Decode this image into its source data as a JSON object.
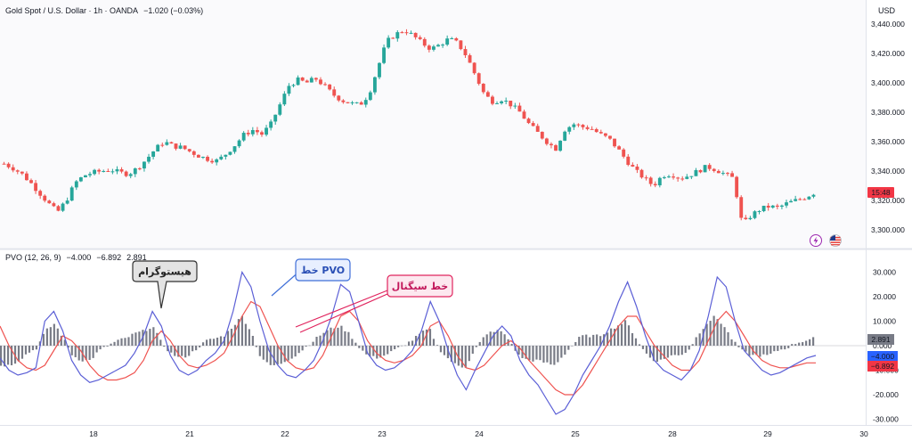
{
  "header": {
    "symbol": "Gold Spot / U.S. Dollar · 1h · OANDA",
    "change": "−1.020 (−0.03%)",
    "currency": "USD"
  },
  "indicator": {
    "label": "PVO (12, 26, 9)",
    "pvo_value": "−4.000",
    "signal_value": "−6.892",
    "hist_value": "2.891"
  },
  "badges": {
    "time": "15:48",
    "hist": "2.891",
    "pvo": "−4.000",
    "signal": "−6.892"
  },
  "annotations": {
    "histogram": "هیستوگرام",
    "pvo_line": "خط PVO",
    "signal_line": "خط سیگنال"
  },
  "colors": {
    "up": "#26a69a",
    "down": "#ef5350",
    "pvo": "#5b5fd6",
    "signal": "#ef5350",
    "hist": "#787b86"
  },
  "chart_data": [
    {
      "type": "candlestick",
      "title": "Gold Spot / U.S. Dollar · 1h · OANDA",
      "ylim": [
        3290,
        3445
      ],
      "y_ticks": [
        "3,440.000",
        "3,420.000",
        "3,400.000",
        "3,380.000",
        "3,360.000",
        "3,340.000",
        "3,320.000",
        "3,300.000"
      ],
      "x_ticks": [
        "18",
        "21",
        "22",
        "23",
        "24",
        "25",
        "28",
        "29",
        "30"
      ],
      "close_path": [
        3345,
        3342,
        3338,
        3332,
        3325,
        3318,
        3312,
        3320,
        3332,
        3337,
        3339,
        3340,
        3341,
        3339,
        3338,
        3342,
        3348,
        3355,
        3360,
        3357,
        3356,
        3353,
        3350,
        3348,
        3347,
        3352,
        3358,
        3365,
        3368,
        3365,
        3372,
        3385,
        3398,
        3402,
        3400,
        3403,
        3398,
        3392,
        3388,
        3386,
        3385,
        3392,
        3410,
        3428,
        3433,
        3436,
        3432,
        3427,
        3423,
        3426,
        3430,
        3427,
        3418,
        3405,
        3392,
        3387,
        3389,
        3385,
        3380,
        3372,
        3366,
        3360,
        3355,
        3368,
        3372,
        3370,
        3369,
        3365,
        3362,
        3355,
        3347,
        3340,
        3335,
        3330,
        3337,
        3338,
        3335,
        3337,
        3340,
        3343,
        3341,
        3338,
        3335,
        3303,
        3310,
        3314,
        3316,
        3315,
        3318,
        3320,
        3322,
        3325
      ]
    },
    {
      "type": "line",
      "title": "PVO (12, 26, 9)",
      "ylim": [
        -33,
        34
      ],
      "y_ticks": [
        "30.000",
        "20.000",
        "10.000",
        "0.000",
        "-10.000",
        "-20.000",
        "-30.000"
      ],
      "series": [
        {
          "name": "PVO",
          "values": [
            -5,
            -10,
            -12,
            -11,
            -9,
            10,
            14,
            6,
            -6,
            -12,
            -15,
            -14,
            -12,
            -10,
            -8,
            -3,
            4,
            14,
            8,
            -4,
            -10,
            -12,
            -10,
            -6,
            -3,
            2,
            14,
            30,
            24,
            10,
            -2,
            -8,
            -12,
            -13,
            -10,
            -6,
            2,
            12,
            25,
            22,
            10,
            -3,
            -8,
            -10,
            -9,
            -6,
            -2,
            6,
            18,
            10,
            -2,
            -12,
            -18,
            -10,
            -3,
            4,
            8,
            4,
            -6,
            -12,
            -16,
            -22,
            -28,
            -26,
            -20,
            -12,
            -6,
            0,
            8,
            18,
            26,
            16,
            4,
            -6,
            -10,
            -12,
            -14,
            -10,
            -2,
            12,
            28,
            24,
            10,
            -2,
            -6,
            -10,
            -12,
            -11,
            -9,
            -7,
            -5,
            -4
          ]
        },
        {
          "name": "Signal",
          "values": [
            8,
            0,
            -6,
            -9,
            -10,
            -8,
            -2,
            4,
            2,
            -2,
            -8,
            -12,
            -14,
            -14,
            -13,
            -11,
            -6,
            2,
            6,
            2,
            -4,
            -8,
            -9,
            -8,
            -6,
            -3,
            4,
            12,
            18,
            16,
            8,
            0,
            -6,
            -9,
            -10,
            -9,
            -4,
            4,
            12,
            14,
            10,
            2,
            -3,
            -6,
            -7,
            -6,
            -4,
            0,
            8,
            10,
            4,
            -4,
            -9,
            -10,
            -8,
            -4,
            0,
            2,
            -1,
            -6,
            -10,
            -14,
            -18,
            -20,
            -20,
            -16,
            -10,
            -4,
            2,
            8,
            12,
            12,
            6,
            0,
            -4,
            -8,
            -10,
            -10,
            -6,
            2,
            10,
            14,
            10,
            4,
            -2,
            -6,
            -8,
            -9,
            -9,
            -8,
            -7,
            -7
          ]
        },
        {
          "name": "Histogram",
          "values": [
            -8,
            -8,
            -6,
            -3,
            -1,
            6,
            9,
            3,
            -4,
            -6,
            -6,
            -2,
            0,
            2,
            3,
            5,
            6,
            8,
            1,
            -3,
            -5,
            -4,
            -1,
            2,
            3,
            4,
            8,
            12,
            6,
            -4,
            -8,
            -8,
            -6,
            -4,
            -1,
            2,
            5,
            7,
            8,
            5,
            0,
            -4,
            -5,
            -4,
            -2,
            0,
            2,
            5,
            7,
            -1,
            -5,
            -8,
            -9,
            -2,
            3,
            6,
            6,
            2,
            -4,
            -6,
            -6,
            -7,
            -8,
            -4,
            0,
            4,
            4,
            4,
            6,
            8,
            10,
            4,
            -2,
            -6,
            -6,
            -4,
            -4,
            -2,
            4,
            9,
            12,
            8,
            2,
            -2,
            -4,
            -4,
            -4,
            -2,
            -1,
            1,
            2,
            3
          ]
        }
      ]
    }
  ]
}
